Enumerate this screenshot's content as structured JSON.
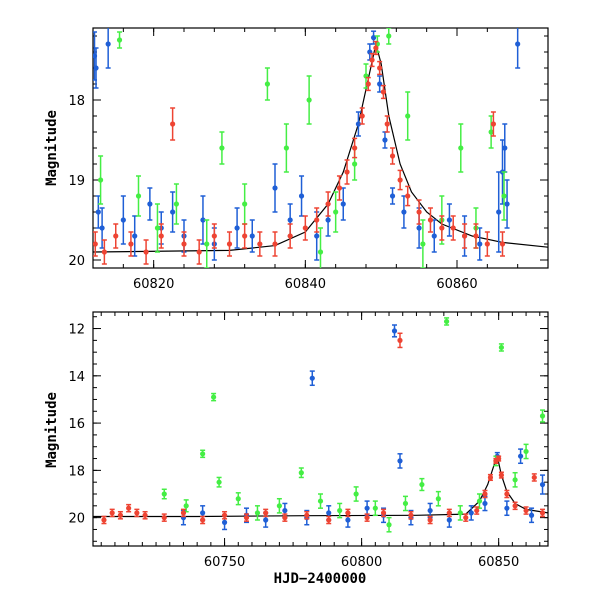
{
  "colors": {
    "blue": "#1f5fd6",
    "green": "#44ee44",
    "red": "#ee4433",
    "model": "#000000"
  },
  "chart_data": [
    {
      "type": "scatter",
      "title": "",
      "xlabel": "",
      "ylabel": "Magnitude",
      "xlim": [
        60812,
        60872
      ],
      "ylim": [
        20.1,
        17.1
      ],
      "y_inverted": true,
      "xticks": [
        60820,
        60840,
        60860
      ],
      "yticks": [
        18,
        19,
        20
      ],
      "grid": false,
      "series": [
        {
          "color": "blue",
          "points": [
            [
              60812.2,
              17.45,
              0.3
            ],
            [
              60812.4,
              17.6,
              0.25
            ],
            [
              60812.7,
              19.4,
              0.2
            ],
            [
              60813.2,
              19.6,
              0.25
            ],
            [
              60814.0,
              17.3,
              0.3
            ],
            [
              60816.0,
              19.5,
              0.3
            ],
            [
              60817.5,
              19.7,
              0.25
            ],
            [
              60819.5,
              19.3,
              0.2
            ],
            [
              60821.0,
              19.6,
              0.2
            ],
            [
              60822.5,
              19.4,
              0.25
            ],
            [
              60824.0,
              19.7,
              0.2
            ],
            [
              60826.5,
              19.5,
              0.3
            ],
            [
              60828.0,
              19.8,
              0.2
            ],
            [
              60831.0,
              19.6,
              0.25
            ],
            [
              60833.0,
              19.7,
              0.2
            ],
            [
              60836.0,
              19.1,
              0.3
            ],
            [
              60838.0,
              19.5,
              0.2
            ],
            [
              60839.5,
              19.2,
              0.25
            ],
            [
              60841.5,
              19.7,
              0.3
            ],
            [
              60843.0,
              19.5,
              0.2
            ],
            [
              60845.0,
              19.3,
              0.2
            ],
            [
              60847.0,
              18.3,
              0.15
            ],
            [
              60848.5,
              17.4,
              0.1
            ],
            [
              60849.0,
              17.22,
              0.08
            ],
            [
              60849.8,
              17.8,
              0.1
            ],
            [
              60850.5,
              18.5,
              0.1
            ],
            [
              60851.5,
              19.2,
              0.1
            ],
            [
              60853.0,
              19.4,
              0.2
            ],
            [
              60855.0,
              19.6,
              0.25
            ],
            [
              60857.0,
              19.7,
              0.2
            ],
            [
              60859.0,
              19.5,
              0.2
            ],
            [
              60861.0,
              19.7,
              0.25
            ],
            [
              60863.0,
              19.8,
              0.2
            ],
            [
              60865.5,
              19.4,
              0.5
            ],
            [
              60866.0,
              18.9,
              0.4
            ],
            [
              60866.3,
              18.6,
              0.3
            ],
            [
              60866.6,
              19.3,
              0.3
            ],
            [
              60868.0,
              17.3,
              0.3
            ]
          ]
        },
        {
          "color": "green",
          "points": [
            [
              60815.5,
              17.25,
              0.1
            ],
            [
              60813.0,
              19.0,
              0.3
            ],
            [
              60818.0,
              19.2,
              0.25
            ],
            [
              60820.5,
              19.6,
              0.3
            ],
            [
              60823.0,
              19.3,
              0.25
            ],
            [
              60827.0,
              19.8,
              0.3
            ],
            [
              60829.0,
              18.6,
              0.2
            ],
            [
              60832.0,
              19.3,
              0.25
            ],
            [
              60835.0,
              17.8,
              0.2
            ],
            [
              60837.5,
              18.6,
              0.3
            ],
            [
              60840.5,
              18.0,
              0.3
            ],
            [
              60842.0,
              19.9,
              0.3
            ],
            [
              60844.0,
              19.4,
              0.25
            ],
            [
              60846.5,
              18.8,
              0.2
            ],
            [
              60848.0,
              17.7,
              0.15
            ],
            [
              60849.5,
              17.3,
              0.1
            ],
            [
              60851.0,
              17.2,
              0.1
            ],
            [
              60853.5,
              18.2,
              0.3
            ],
            [
              60855.5,
              19.8,
              0.3
            ],
            [
              60858.0,
              19.5,
              0.3
            ],
            [
              60860.5,
              18.6,
              0.3
            ],
            [
              60862.5,
              19.6,
              0.25
            ],
            [
              60864.5,
              18.4,
              0.2
            ],
            [
              60866.2,
              19.2,
              0.3
            ]
          ]
        },
        {
          "color": "red",
          "points": [
            [
              60812.3,
              19.8,
              0.15
            ],
            [
              60813.5,
              19.9,
              0.15
            ],
            [
              60815.0,
              19.7,
              0.15
            ],
            [
              60817.0,
              19.8,
              0.15
            ],
            [
              60819.0,
              19.9,
              0.15
            ],
            [
              60821.0,
              19.7,
              0.15
            ],
            [
              60822.5,
              18.3,
              0.2
            ],
            [
              60824.0,
              19.8,
              0.15
            ],
            [
              60826.0,
              19.9,
              0.15
            ],
            [
              60828.0,
              19.7,
              0.15
            ],
            [
              60830.0,
              19.8,
              0.15
            ],
            [
              60832.0,
              19.7,
              0.15
            ],
            [
              60834.0,
              19.8,
              0.15
            ],
            [
              60836.0,
              19.8,
              0.15
            ],
            [
              60838.0,
              19.7,
              0.15
            ],
            [
              60840.0,
              19.6,
              0.15
            ],
            [
              60841.5,
              19.5,
              0.15
            ],
            [
              60843.0,
              19.3,
              0.15
            ],
            [
              60844.5,
              19.1,
              0.15
            ],
            [
              60845.5,
              18.9,
              0.15
            ],
            [
              60846.5,
              18.6,
              0.12
            ],
            [
              60847.5,
              18.2,
              0.1
            ],
            [
              60848.3,
              17.8,
              0.08
            ],
            [
              60848.8,
              17.5,
              0.08
            ],
            [
              60849.3,
              17.35,
              0.08
            ],
            [
              60849.8,
              17.6,
              0.08
            ],
            [
              60850.3,
              17.9,
              0.08
            ],
            [
              60850.8,
              18.3,
              0.1
            ],
            [
              60851.5,
              18.7,
              0.1
            ],
            [
              60852.5,
              19.0,
              0.12
            ],
            [
              60853.5,
              19.2,
              0.12
            ],
            [
              60855.0,
              19.4,
              0.15
            ],
            [
              60856.5,
              19.5,
              0.15
            ],
            [
              60858.0,
              19.6,
              0.15
            ],
            [
              60859.5,
              19.6,
              0.15
            ],
            [
              60861.0,
              19.7,
              0.15
            ],
            [
              60862.5,
              19.7,
              0.15
            ],
            [
              60864.0,
              19.8,
              0.15
            ],
            [
              60864.8,
              18.3,
              0.15
            ],
            [
              60866.0,
              19.8,
              0.15
            ]
          ]
        }
      ],
      "model": [
        [
          60812,
          19.9
        ],
        [
          60830,
          19.88
        ],
        [
          60836,
          19.82
        ],
        [
          60840,
          19.65
        ],
        [
          60843,
          19.3
        ],
        [
          60845,
          18.9
        ],
        [
          60847,
          18.3
        ],
        [
          60848.5,
          17.65
        ],
        [
          60849.3,
          17.3
        ],
        [
          60850,
          17.55
        ],
        [
          60851,
          18.2
        ],
        [
          60852.5,
          18.8
        ],
        [
          60854,
          19.15
        ],
        [
          60856,
          19.4
        ],
        [
          60858,
          19.55
        ],
        [
          60862,
          19.7
        ],
        [
          60866,
          19.78
        ],
        [
          60872,
          19.84
        ]
      ]
    },
    {
      "type": "scatter",
      "title": "",
      "xlabel": "HJD−2400000",
      "ylabel": "Magnitude",
      "xlim": [
        60702,
        60868
      ],
      "ylim": [
        21.2,
        11.3
      ],
      "y_inverted": true,
      "xticks": [
        60750,
        60800,
        60850
      ],
      "yticks": [
        12,
        14,
        16,
        18,
        20
      ],
      "grid": false,
      "series": [
        {
          "color": "blue",
          "points": [
            [
              60735,
              20.0,
              0.3
            ],
            [
              60742,
              19.8,
              0.3
            ],
            [
              60750,
              20.2,
              0.3
            ],
            [
              60758,
              19.9,
              0.3
            ],
            [
              60765,
              20.1,
              0.3
            ],
            [
              60772,
              19.7,
              0.3
            ],
            [
              60780,
              20.0,
              0.3
            ],
            [
              60782,
              14.1,
              0.3
            ],
            [
              60788,
              19.8,
              0.3
            ],
            [
              60795,
              20.1,
              0.3
            ],
            [
              60802,
              19.6,
              0.3
            ],
            [
              60808,
              19.9,
              0.3
            ],
            [
              60812,
              12.1,
              0.25
            ],
            [
              60814,
              17.6,
              0.3
            ],
            [
              60818,
              20.0,
              0.3
            ],
            [
              60825,
              19.7,
              0.3
            ],
            [
              60832,
              20.1,
              0.3
            ],
            [
              60840,
              19.8,
              0.3
            ],
            [
              60845,
              19.4,
              0.3
            ],
            [
              60849.5,
              17.4,
              0.15
            ],
            [
              60853,
              19.6,
              0.3
            ],
            [
              60858,
              17.4,
              0.3
            ],
            [
              60862,
              19.9,
              0.3
            ],
            [
              60866,
              18.6,
              0.4
            ]
          ]
        },
        {
          "color": "green",
          "points": [
            [
              60728,
              19.0,
              0.2
            ],
            [
              60736,
              19.5,
              0.25
            ],
            [
              60742,
              17.3,
              0.15
            ],
            [
              60746,
              14.9,
              0.15
            ],
            [
              60748,
              18.5,
              0.2
            ],
            [
              60755,
              19.2,
              0.25
            ],
            [
              60762,
              19.8,
              0.3
            ],
            [
              60770,
              19.5,
              0.3
            ],
            [
              60778,
              18.1,
              0.2
            ],
            [
              60785,
              19.3,
              0.3
            ],
            [
              60792,
              19.7,
              0.3
            ],
            [
              60798,
              19.0,
              0.3
            ],
            [
              60805,
              19.6,
              0.3
            ],
            [
              60810,
              20.3,
              0.3
            ],
            [
              60816,
              19.4,
              0.3
            ],
            [
              60822,
              18.6,
              0.25
            ],
            [
              60828,
              19.2,
              0.3
            ],
            [
              60831,
              11.7,
              0.15
            ],
            [
              60836,
              19.8,
              0.3
            ],
            [
              60843,
              19.3,
              0.3
            ],
            [
              60849,
              17.6,
              0.2
            ],
            [
              60851,
              12.8,
              0.15
            ],
            [
              60856,
              18.4,
              0.3
            ],
            [
              60860,
              17.2,
              0.3
            ],
            [
              60866,
              15.7,
              0.25
            ]
          ]
        },
        {
          "color": "red",
          "points": [
            [
              60706,
              20.1,
              0.15
            ],
            [
              60709,
              19.8,
              0.15
            ],
            [
              60712,
              19.9,
              0.15
            ],
            [
              60715,
              19.6,
              0.15
            ],
            [
              60718,
              19.8,
              0.15
            ],
            [
              60721,
              19.9,
              0.15
            ],
            [
              60728,
              20.0,
              0.15
            ],
            [
              60735,
              19.8,
              0.15
            ],
            [
              60742,
              20.1,
              0.15
            ],
            [
              60750,
              19.9,
              0.15
            ],
            [
              60758,
              20.0,
              0.15
            ],
            [
              60765,
              19.8,
              0.15
            ],
            [
              60772,
              20.0,
              0.15
            ],
            [
              60780,
              19.9,
              0.15
            ],
            [
              60788,
              20.1,
              0.15
            ],
            [
              60795,
              19.8,
              0.15
            ],
            [
              60802,
              20.0,
              0.15
            ],
            [
              60808,
              19.8,
              0.15
            ],
            [
              60814,
              12.5,
              0.3
            ],
            [
              60818,
              19.9,
              0.15
            ],
            [
              60825,
              20.1,
              0.15
            ],
            [
              60832,
              19.8,
              0.15
            ],
            [
              60838,
              20.0,
              0.15
            ],
            [
              60842,
              19.7,
              0.15
            ],
            [
              60845,
              19.0,
              0.15
            ],
            [
              60847,
              18.3,
              0.12
            ],
            [
              60849,
              17.6,
              0.1
            ],
            [
              60850,
              17.5,
              0.1
            ],
            [
              60851,
              18.2,
              0.12
            ],
            [
              60853,
              19.0,
              0.15
            ],
            [
              60856,
              19.5,
              0.15
            ],
            [
              60860,
              19.7,
              0.15
            ],
            [
              60863,
              18.3,
              0.15
            ],
            [
              60866,
              19.8,
              0.15
            ]
          ]
        }
      ],
      "model": [
        [
          60702,
          19.95
        ],
        [
          60740,
          19.95
        ],
        [
          60780,
          19.92
        ],
        [
          60820,
          19.9
        ],
        [
          60838,
          19.85
        ],
        [
          60843,
          19.3
        ],
        [
          60846,
          18.6
        ],
        [
          60848.5,
          17.7
        ],
        [
          60849.5,
          17.4
        ],
        [
          60851,
          18.2
        ],
        [
          60853,
          18.9
        ],
        [
          60856,
          19.4
        ],
        [
          60860,
          19.65
        ],
        [
          60868,
          19.8
        ]
      ]
    }
  ]
}
